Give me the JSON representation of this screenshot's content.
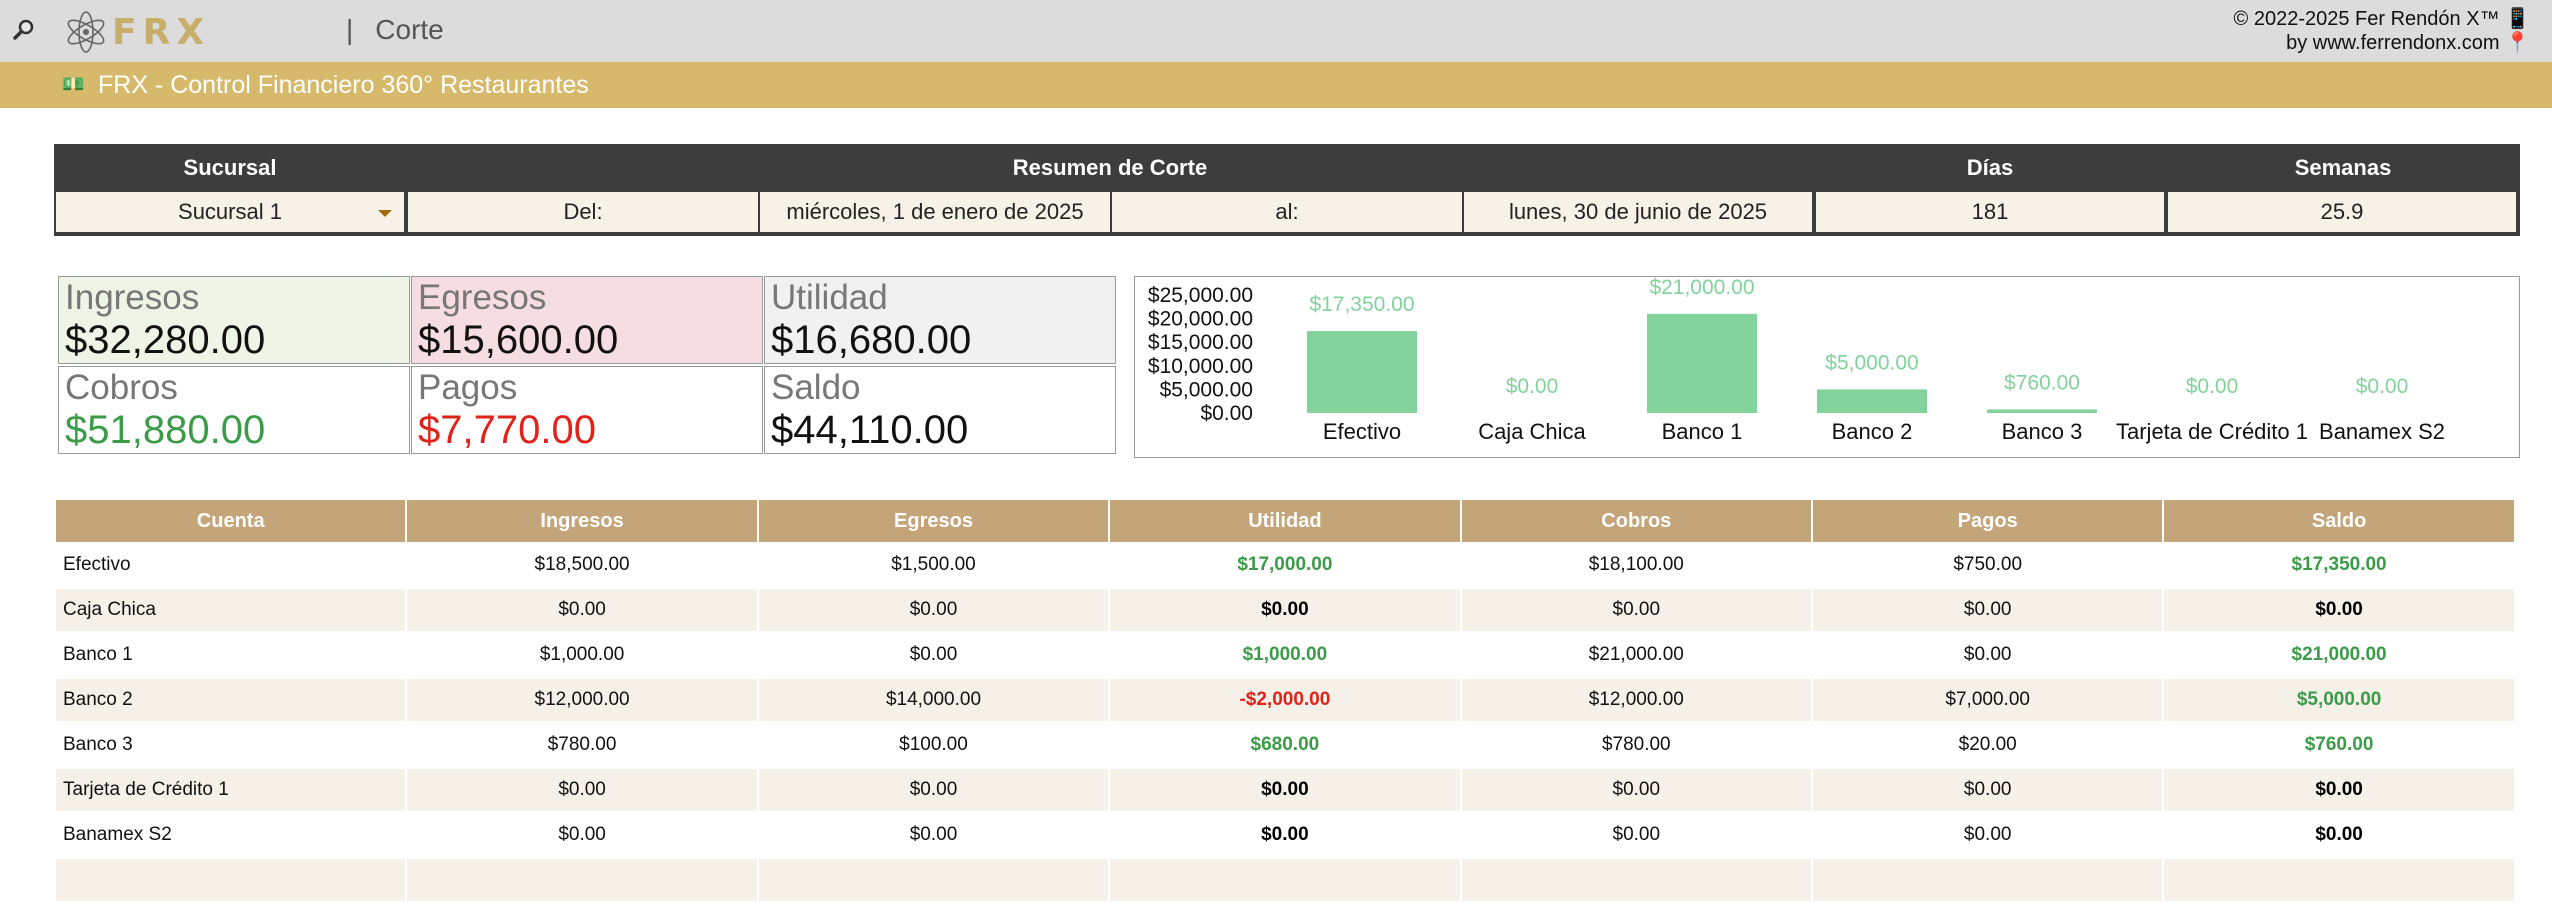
{
  "header": {
    "zoom_icon": "magnifier-icon",
    "logo_text": "FRX",
    "separator": "|",
    "page_title": "Corte",
    "copyright_line1": "© 2022-2025 Fer Rendón X™ 📱",
    "copyright_line2": "by www.ferrendonx.com 📍"
  },
  "band": {
    "icon": "💵",
    "title": "FRX - Control Financiero 360° Restaurantes"
  },
  "summary": {
    "headers": {
      "branch": "Sucursal",
      "summary": "Resumen de Corte",
      "days": "Días",
      "weeks": "Semanas"
    },
    "branch_value": "Sucursal 1",
    "from_label": "Del:",
    "from_date": "miércoles, 1 de enero de 2025",
    "to_label": "al:",
    "to_date": "lunes, 30 de junio de 2025",
    "days": "181",
    "weeks": "25.9"
  },
  "kpis": [
    {
      "label": "Ingresos",
      "value": "$32,280.00",
      "bg": "#eef5e6",
      "value_color": "#111111"
    },
    {
      "label": "Egresos",
      "value": "$15,600.00",
      "bg": "#f6dde4",
      "value_color": "#111111"
    },
    {
      "label": "Utilidad",
      "value": "$16,680.00",
      "bg": "#f1f1f1",
      "value_color": "#111111"
    },
    {
      "label": "Cobros",
      "value": "$51,880.00",
      "bg": "#ffffff",
      "value_color": "#3c9b48"
    },
    {
      "label": "Pagos",
      "value": "$7,770.00",
      "bg": "#ffffff",
      "value_color": "#e0231a"
    },
    {
      "label": "Saldo",
      "value": "$44,110.00",
      "bg": "#ffffff",
      "value_color": "#111111"
    }
  ],
  "chart_data": {
    "type": "bar",
    "categories": [
      "Efectivo",
      "Caja Chica",
      "Banco 1",
      "Banco 2",
      "Banco 3",
      "Tarjeta de Crédito 1",
      "Banamex S2"
    ],
    "values": [
      17350,
      0,
      21000,
      5000,
      760,
      0,
      0
    ],
    "data_labels": [
      "$17,350.00",
      "$0.00",
      "$21,000.00",
      "$5,000.00",
      "$760.00",
      "$0.00",
      "$0.00"
    ],
    "yticks": [
      "$25,000.00",
      "$20,000.00",
      "$15,000.00",
      "$10,000.00",
      "$5,000.00",
      "$0.00"
    ],
    "ylim": [
      0,
      25000
    ],
    "bar_color": "#82d29b",
    "grid": false,
    "legend": "none"
  },
  "table": {
    "headers": [
      "Cuenta",
      "Ingresos",
      "Egresos",
      "Utilidad",
      "Cobros",
      "Pagos",
      "Saldo"
    ],
    "rows": [
      {
        "cuenta": "Efectivo",
        "ingresos": "$18,500.00",
        "egresos": "$1,500.00",
        "utilidad": "$17,000.00",
        "cobros": "$18,100.00",
        "pagos": "$750.00",
        "saldo": "$17,350.00"
      },
      {
        "cuenta": "Caja Chica",
        "ingresos": "$0.00",
        "egresos": "$0.00",
        "utilidad": "$0.00",
        "cobros": "$0.00",
        "pagos": "$0.00",
        "saldo": "$0.00"
      },
      {
        "cuenta": "Banco 1",
        "ingresos": "$1,000.00",
        "egresos": "$0.00",
        "utilidad": "$1,000.00",
        "cobros": "$21,000.00",
        "pagos": "$0.00",
        "saldo": "$21,000.00"
      },
      {
        "cuenta": "Banco 2",
        "ingresos": "$12,000.00",
        "egresos": "$14,000.00",
        "utilidad": "-$2,000.00",
        "cobros": "$12,000.00",
        "pagos": "$7,000.00",
        "saldo": "$5,000.00"
      },
      {
        "cuenta": "Banco 3",
        "ingresos": "$780.00",
        "egresos": "$100.00",
        "utilidad": "$680.00",
        "cobros": "$780.00",
        "pagos": "$20.00",
        "saldo": "$760.00"
      },
      {
        "cuenta": "Tarjeta de Crédito 1",
        "ingresos": "$0.00",
        "egresos": "$0.00",
        "utilidad": "$0.00",
        "cobros": "$0.00",
        "pagos": "$0.00",
        "saldo": "$0.00"
      },
      {
        "cuenta": "Banamex S2",
        "ingresos": "$0.00",
        "egresos": "$0.00",
        "utilidad": "$0.00",
        "cobros": "$0.00",
        "pagos": "$0.00",
        "saldo": "$0.00"
      }
    ],
    "row_stripe_color": "#f5f1e8"
  }
}
